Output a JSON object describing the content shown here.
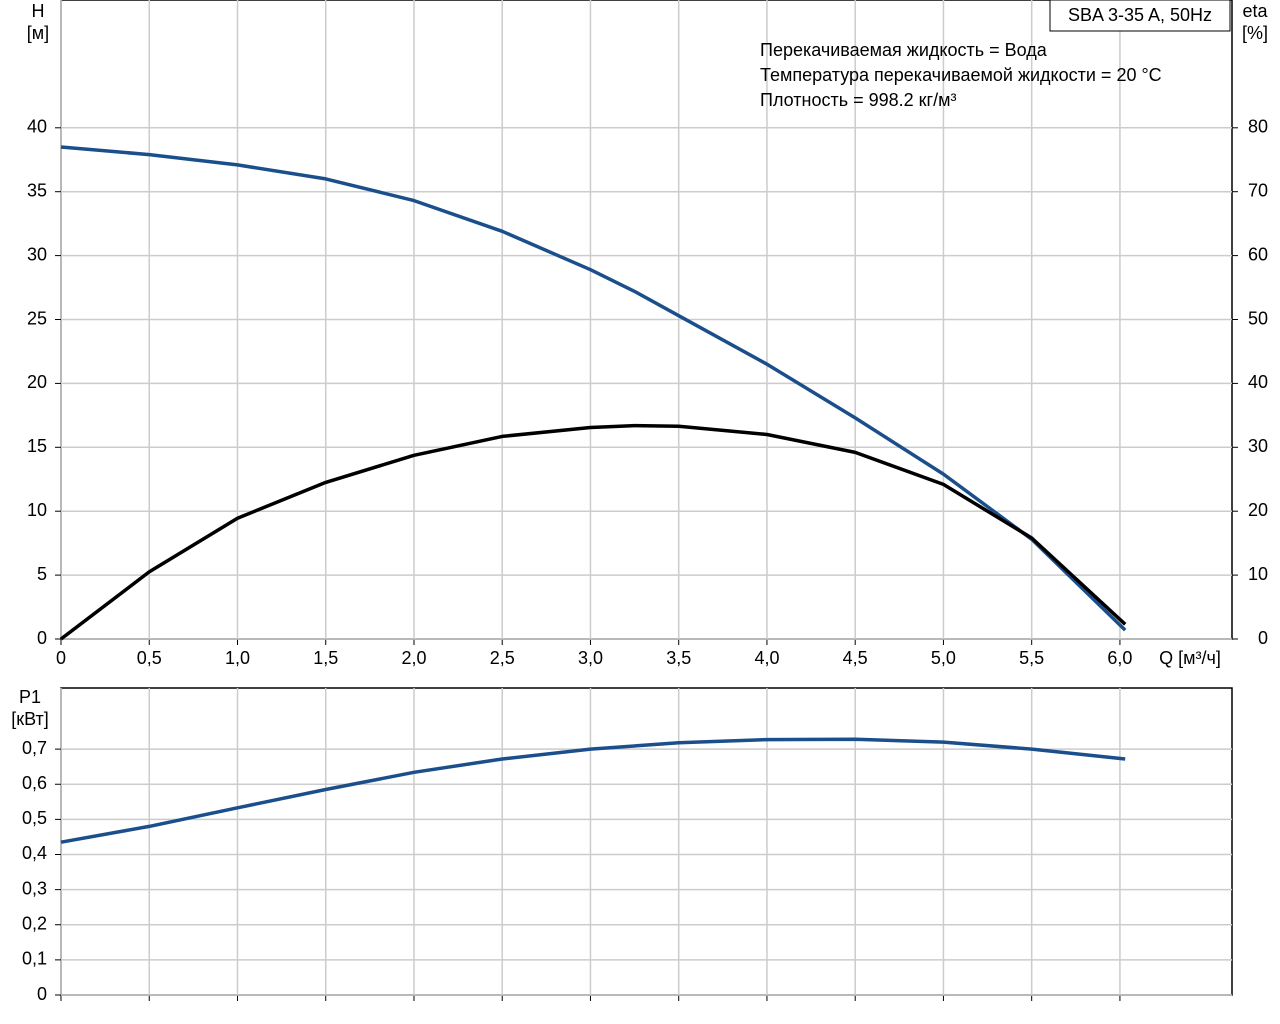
{
  "chart_data": [
    {
      "type": "line",
      "legend_title": "SBA 3-35 A, 50Hz",
      "annotations": [
        "Перекачиваемая жидкость = Вода",
        "Температура перекачиваемой жидкости = 20 °C",
        "Плотность = 998.2 кг/м³"
      ],
      "ylabel": [
        "H",
        "[м]"
      ],
      "y2label": [
        "eta",
        "[%]"
      ],
      "xlabel": "Q [м³/ч]",
      "xlim": [
        0,
        6.635
      ],
      "ylim": [
        0,
        50
      ],
      "y2lim": [
        0,
        100
      ],
      "xticks": [
        0,
        {
          "value": 0.5,
          "label": "0,5"
        },
        {
          "value": 1,
          "label": "1,0"
        },
        {
          "value": 1.5,
          "label": "1,5"
        },
        {
          "value": 2,
          "label": "2,0"
        },
        {
          "value": 2.5,
          "label": "2,5"
        },
        {
          "value": 3,
          "label": "3,0"
        },
        {
          "value": 3.5,
          "label": "3,5"
        },
        {
          "value": 4,
          "label": "4,0"
        },
        {
          "value": 4.5,
          "label": "4,5"
        },
        {
          "value": 5,
          "label": "5,0"
        },
        {
          "value": 5.5,
          "label": "5,5"
        },
        {
          "value": 6,
          "label": "6,0"
        }
      ],
      "yticks": [
        0,
        5,
        10,
        15,
        20,
        25,
        30,
        35,
        40
      ],
      "y2ticks": [
        0,
        10,
        20,
        30,
        40,
        50,
        60,
        70,
        80
      ],
      "grid": true,
      "x": [
        0,
        0.5,
        1,
        1.5,
        2,
        2.5,
        3,
        3.25,
        3.5,
        4,
        4.5,
        5,
        5.5,
        6.03
      ],
      "series": [
        {
          "color": "#1b4f8c",
          "values": [
            38.5,
            37.9,
            37.1,
            36.0,
            34.3,
            31.9,
            28.9,
            27.2,
            25.3,
            21.5,
            17.3,
            12.9,
            7.8,
            0.7
          ]
        },
        {
          "color": "#000000",
          "axis": "y2",
          "values": [
            0,
            10.5,
            18.9,
            24.5,
            28.75,
            31.7,
            33.1,
            33.4,
            33.3,
            32.0,
            29.2,
            24.2,
            15.8,
            2.3
          ]
        }
      ]
    },
    {
      "type": "line",
      "ylabel": [
        "P1",
        "[кВт]"
      ],
      "xlim": [
        0,
        6.635
      ],
      "ylim": [
        0,
        0.874
      ],
      "yticks": [
        0,
        {
          "value": 0.1,
          "label": "0,1"
        },
        {
          "value": 0.2,
          "label": "0,2"
        },
        {
          "value": 0.3,
          "label": "0,3"
        },
        {
          "value": 0.4,
          "label": "0,4"
        },
        {
          "value": 0.5,
          "label": "0,5"
        },
        {
          "value": 0.6,
          "label": "0,6"
        },
        {
          "value": 0.7,
          "label": "0,7"
        }
      ],
      "grid": true,
      "x": [
        0,
        0.5,
        1,
        1.5,
        2,
        2.5,
        3,
        3.5,
        4,
        4.5,
        5,
        5.5,
        6.03
      ],
      "series": [
        {
          "color": "#1b4f8c",
          "values": [
            0.435,
            0.48,
            0.533,
            0.585,
            0.634,
            0.672,
            0.7,
            0.718,
            0.727,
            0.728,
            0.72,
            0.7,
            0.672
          ]
        }
      ]
    }
  ]
}
